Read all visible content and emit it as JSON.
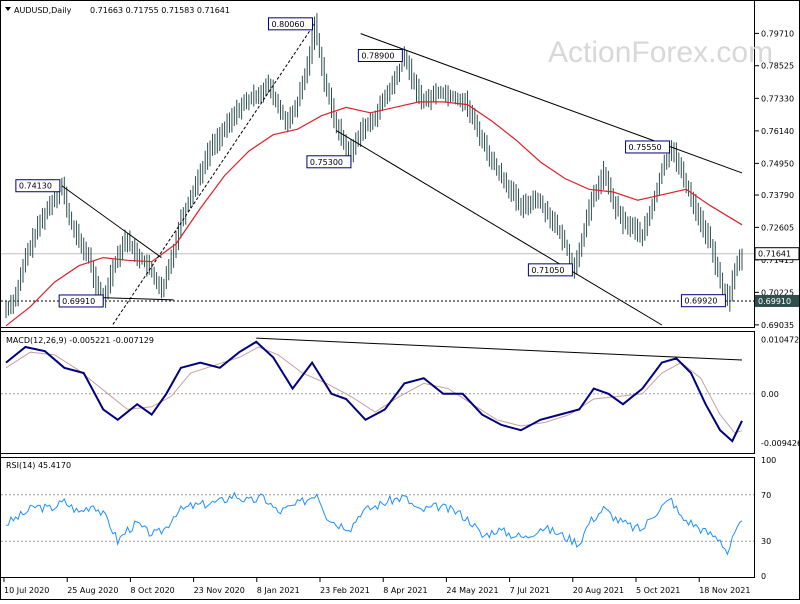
{
  "header": {
    "symbol": "AUDUSD,Daily",
    "ohlc": "0.71663 0.71755 0.71583 0.71641"
  },
  "watermark": "ActionForex.com",
  "colors": {
    "candle": "#2f4f4f",
    "ma": "#e0202a",
    "trendline": "#000000",
    "macd": "#000080",
    "signal": "#c8a0a0",
    "rsi": "#1e90ff",
    "label_border": "#000080"
  },
  "chart_data": [
    {
      "type": "candlestick",
      "name": "AUDUSD,Daily",
      "ylim": [
        0.6903,
        0.802
      ],
      "y_ticks": [
        "0.79710",
        "0.78525",
        "0.77330",
        "0.76140",
        "0.74950",
        "0.73790",
        "0.72605",
        "0.71415",
        "0.70225",
        "0.69035"
      ],
      "current_price": "0.71641",
      "support_level": "0.69910",
      "x_ticks": [
        "10 Jul 2020",
        "25 Aug 2020",
        "8 Oct 2020",
        "23 Nov 2020",
        "8 Jan 2021",
        "23 Feb 2021",
        "8 Apr 2021",
        "24 May 2021",
        "7 Jul 2021",
        "20 Aug 2021",
        "5 Oct 2021",
        "18 Nov 2021"
      ],
      "price_path": [
        [
          0,
          0.696
        ],
        [
          4,
          0.701
        ],
        [
          8,
          0.715
        ],
        [
          14,
          0.728
        ],
        [
          19,
          0.736
        ],
        [
          23,
          0.7413
        ],
        [
          26,
          0.729
        ],
        [
          30,
          0.721
        ],
        [
          34,
          0.715
        ],
        [
          37,
          0.704
        ],
        [
          40,
          0.6991
        ],
        [
          44,
          0.712
        ],
        [
          49,
          0.722
        ],
        [
          53,
          0.717
        ],
        [
          58,
          0.712
        ],
        [
          61,
          0.708
        ],
        [
          64,
          0.702
        ],
        [
          68,
          0.715
        ],
        [
          72,
          0.729
        ],
        [
          78,
          0.742
        ],
        [
          84,
          0.755
        ],
        [
          90,
          0.762
        ],
        [
          96,
          0.77
        ],
        [
          102,
          0.774
        ],
        [
          108,
          0.778
        ],
        [
          112,
          0.77
        ],
        [
          116,
          0.764
        ],
        [
          120,
          0.772
        ],
        [
          124,
          0.785
        ],
        [
          127,
          0.8006
        ],
        [
          131,
          0.78
        ],
        [
          135,
          0.766
        ],
        [
          139,
          0.757
        ],
        [
          142,
          0.753
        ],
        [
          146,
          0.762
        ],
        [
          150,
          0.764
        ],
        [
          155,
          0.772
        ],
        [
          160,
          0.78
        ],
        [
          164,
          0.789
        ],
        [
          168,
          0.778
        ],
        [
          172,
          0.772
        ],
        [
          178,
          0.776
        ],
        [
          184,
          0.774
        ],
        [
          189,
          0.772
        ],
        [
          194,
          0.762
        ],
        [
          200,
          0.75
        ],
        [
          206,
          0.742
        ],
        [
          212,
          0.733
        ],
        [
          218,
          0.737
        ],
        [
          224,
          0.73
        ],
        [
          230,
          0.72
        ],
        [
          234,
          0.7105
        ],
        [
          238,
          0.726
        ],
        [
          242,
          0.738
        ],
        [
          246,
          0.746
        ],
        [
          250,
          0.735
        ],
        [
          254,
          0.728
        ],
        [
          258,
          0.726
        ],
        [
          262,
          0.723
        ],
        [
          266,
          0.734
        ],
        [
          270,
          0.747
        ],
        [
          274,
          0.7555
        ],
        [
          278,
          0.746
        ],
        [
          282,
          0.737
        ],
        [
          286,
          0.728
        ],
        [
          290,
          0.72
        ],
        [
          294,
          0.706
        ],
        [
          297,
          0.6992
        ],
        [
          300,
          0.71
        ],
        [
          303,
          0.7164
        ]
      ],
      "ma_path": [
        [
          0,
          0.69
        ],
        [
          10,
          0.697
        ],
        [
          20,
          0.706
        ],
        [
          30,
          0.712
        ],
        [
          40,
          0.715
        ],
        [
          50,
          0.714
        ],
        [
          60,
          0.7135
        ],
        [
          70,
          0.72
        ],
        [
          80,
          0.733
        ],
        [
          90,
          0.745
        ],
        [
          100,
          0.754
        ],
        [
          110,
          0.76
        ],
        [
          120,
          0.762
        ],
        [
          130,
          0.767
        ],
        [
          140,
          0.77
        ],
        [
          150,
          0.768
        ],
        [
          160,
          0.77
        ],
        [
          170,
          0.772
        ],
        [
          180,
          0.772
        ],
        [
          190,
          0.771
        ],
        [
          200,
          0.765
        ],
        [
          210,
          0.758
        ],
        [
          220,
          0.75
        ],
        [
          230,
          0.744
        ],
        [
          240,
          0.74
        ],
        [
          250,
          0.739
        ],
        [
          260,
          0.736
        ],
        [
          270,
          0.738
        ],
        [
          280,
          0.74
        ],
        [
          290,
          0.734
        ],
        [
          303,
          0.727
        ]
      ],
      "labels": [
        {
          "text": "0.80060",
          "bar": 127,
          "value": 0.8006,
          "pos": "left"
        },
        {
          "text": "0.78900",
          "bar": 164,
          "value": 0.789,
          "pos": "left"
        },
        {
          "text": "0.75300",
          "bar": 142,
          "value": 0.753,
          "pos": "below"
        },
        {
          "text": "0.74130",
          "bar": 23,
          "value": 0.7413,
          "pos": "left"
        },
        {
          "text": "0.75550",
          "bar": 274,
          "value": 0.7555,
          "pos": "left"
        },
        {
          "text": "0.71050",
          "bar": 234,
          "value": 0.7105,
          "pos": "left"
        },
        {
          "text": "0.69910",
          "bar": 40,
          "value": 0.6991,
          "pos": "right"
        },
        {
          "text": "0.69920",
          "bar": 297,
          "value": 0.6992,
          "pos": "left"
        }
      ],
      "trendlines": [
        {
          "from": [
            23,
            0.7413
          ],
          "to": [
            64,
            0.715
          ]
        },
        {
          "from": [
            33,
            0.7005
          ],
          "to": [
            69,
            0.6995
          ]
        },
        {
          "from": [
            44,
            0.6905
          ],
          "to": [
            127,
            0.8006
          ]
        },
        {
          "from": [
            146,
            0.797
          ],
          "to": [
            303,
            0.746
          ]
        },
        {
          "from": [
            136,
            0.7615
          ],
          "to": [
            270,
            0.6903
          ]
        }
      ]
    },
    {
      "type": "line",
      "name": "MACD(12,26,9) -0.005221 -0.007129",
      "ylim": [
        -0.011,
        0.0115
      ],
      "y_ticks": [
        "0.010472",
        "0.00",
        "-0.009426"
      ],
      "series": [
        {
          "name": "MACD",
          "path": [
            [
              0,
              0.006
            ],
            [
              8,
              0.009
            ],
            [
              16,
              0.0082
            ],
            [
              24,
              0.005
            ],
            [
              32,
              0.004
            ],
            [
              40,
              -0.003
            ],
            [
              46,
              -0.005
            ],
            [
              54,
              -0.002
            ],
            [
              60,
              -0.004
            ],
            [
              66,
              0.0
            ],
            [
              72,
              0.005
            ],
            [
              80,
              0.006
            ],
            [
              88,
              0.005
            ],
            [
              96,
              0.008
            ],
            [
              103,
              0.01
            ],
            [
              110,
              0.007
            ],
            [
              118,
              0.001
            ],
            [
              126,
              0.006
            ],
            [
              134,
              0.0
            ],
            [
              140,
              -0.001
            ],
            [
              148,
              -0.005
            ],
            [
              156,
              -0.003
            ],
            [
              164,
              0.002
            ],
            [
              172,
              0.003
            ],
            [
              180,
              0.0
            ],
            [
              188,
              0.0
            ],
            [
              196,
              -0.004
            ],
            [
              204,
              -0.006
            ],
            [
              212,
              -0.007
            ],
            [
              220,
              -0.005
            ],
            [
              228,
              -0.004
            ],
            [
              236,
              -0.003
            ],
            [
              242,
              0.001
            ],
            [
              248,
              0.0
            ],
            [
              254,
              -0.002
            ],
            [
              262,
              0.001
            ],
            [
              270,
              0.006
            ],
            [
              276,
              0.0068
            ],
            [
              282,
              0.004
            ],
            [
              288,
              -0.002
            ],
            [
              294,
              -0.007
            ],
            [
              299,
              -0.0091
            ],
            [
              303,
              -0.0052
            ]
          ]
        },
        {
          "name": "Signal",
          "path": [
            [
              0,
              0.005
            ],
            [
              10,
              0.008
            ],
            [
              20,
              0.0075
            ],
            [
              30,
              0.0045
            ],
            [
              42,
              0.0
            ],
            [
              50,
              -0.003
            ],
            [
              60,
              -0.0025
            ],
            [
              68,
              -0.0005
            ],
            [
              76,
              0.004
            ],
            [
              86,
              0.0055
            ],
            [
              96,
              0.007
            ],
            [
              104,
              0.009
            ],
            [
              112,
              0.0075
            ],
            [
              122,
              0.004
            ],
            [
              132,
              0.002
            ],
            [
              142,
              -0.0005
            ],
            [
              152,
              -0.0035
            ],
            [
              162,
              -0.0005
            ],
            [
              172,
              0.002
            ],
            [
              182,
              0.001
            ],
            [
              192,
              -0.002
            ],
            [
              202,
              -0.005
            ],
            [
              212,
              -0.0062
            ],
            [
              222,
              -0.0055
            ],
            [
              232,
              -0.004
            ],
            [
              242,
              -0.001
            ],
            [
              252,
              -0.0005
            ],
            [
              262,
              0.0
            ],
            [
              270,
              0.004
            ],
            [
              278,
              0.006
            ],
            [
              286,
              0.003
            ],
            [
              294,
              -0.004
            ],
            [
              300,
              -0.0075
            ],
            [
              303,
              -0.0071
            ]
          ]
        }
      ],
      "trendline": {
        "from": [
          103,
          0.0107
        ],
        "to": [
          303,
          0.0065
        ]
      }
    },
    {
      "type": "line",
      "name": "RSI(14) 45.4170",
      "ylim": [
        0,
        100
      ],
      "y_ticks": [
        "100",
        "70",
        "30",
        "0"
      ],
      "levels": [
        70,
        30
      ],
      "series": [
        {
          "name": "RSI",
          "path": [
            [
              0,
              45
            ],
            [
              6,
              52
            ],
            [
              12,
              60
            ],
            [
              18,
              58
            ],
            [
              24,
              64
            ],
            [
              30,
              55
            ],
            [
              36,
              62
            ],
            [
              42,
              48
            ],
            [
              46,
              30
            ],
            [
              50,
              40
            ],
            [
              54,
              45
            ],
            [
              58,
              38
            ],
            [
              62,
              36
            ],
            [
              66,
              42
            ],
            [
              70,
              55
            ],
            [
              76,
              60
            ],
            [
              82,
              62
            ],
            [
              88,
              64
            ],
            [
              94,
              70
            ],
            [
              100,
              64
            ],
            [
              106,
              68
            ],
            [
              112,
              55
            ],
            [
              118,
              60
            ],
            [
              124,
              66
            ],
            [
              128,
              72
            ],
            [
              132,
              52
            ],
            [
              136,
              45
            ],
            [
              142,
              42
            ],
            [
              146,
              55
            ],
            [
              152,
              60
            ],
            [
              158,
              65
            ],
            [
              164,
              68
            ],
            [
              170,
              56
            ],
            [
              178,
              60
            ],
            [
              186,
              55
            ],
            [
              192,
              46
            ],
            [
              196,
              34
            ],
            [
              202,
              40
            ],
            [
              208,
              36
            ],
            [
              214,
              33
            ],
            [
              220,
              42
            ],
            [
              226,
              38
            ],
            [
              232,
              32
            ],
            [
              236,
              28
            ],
            [
              240,
              46
            ],
            [
              246,
              58
            ],
            [
              252,
              48
            ],
            [
              258,
              42
            ],
            [
              262,
              40
            ],
            [
              266,
              52
            ],
            [
              270,
              60
            ],
            [
              274,
              66
            ],
            [
              278,
              50
            ],
            [
              282,
              46
            ],
            [
              288,
              38
            ],
            [
              294,
              32
            ],
            [
              297,
              20
            ],
            [
              300,
              36
            ],
            [
              303,
              45.417
            ]
          ]
        }
      ]
    }
  ]
}
